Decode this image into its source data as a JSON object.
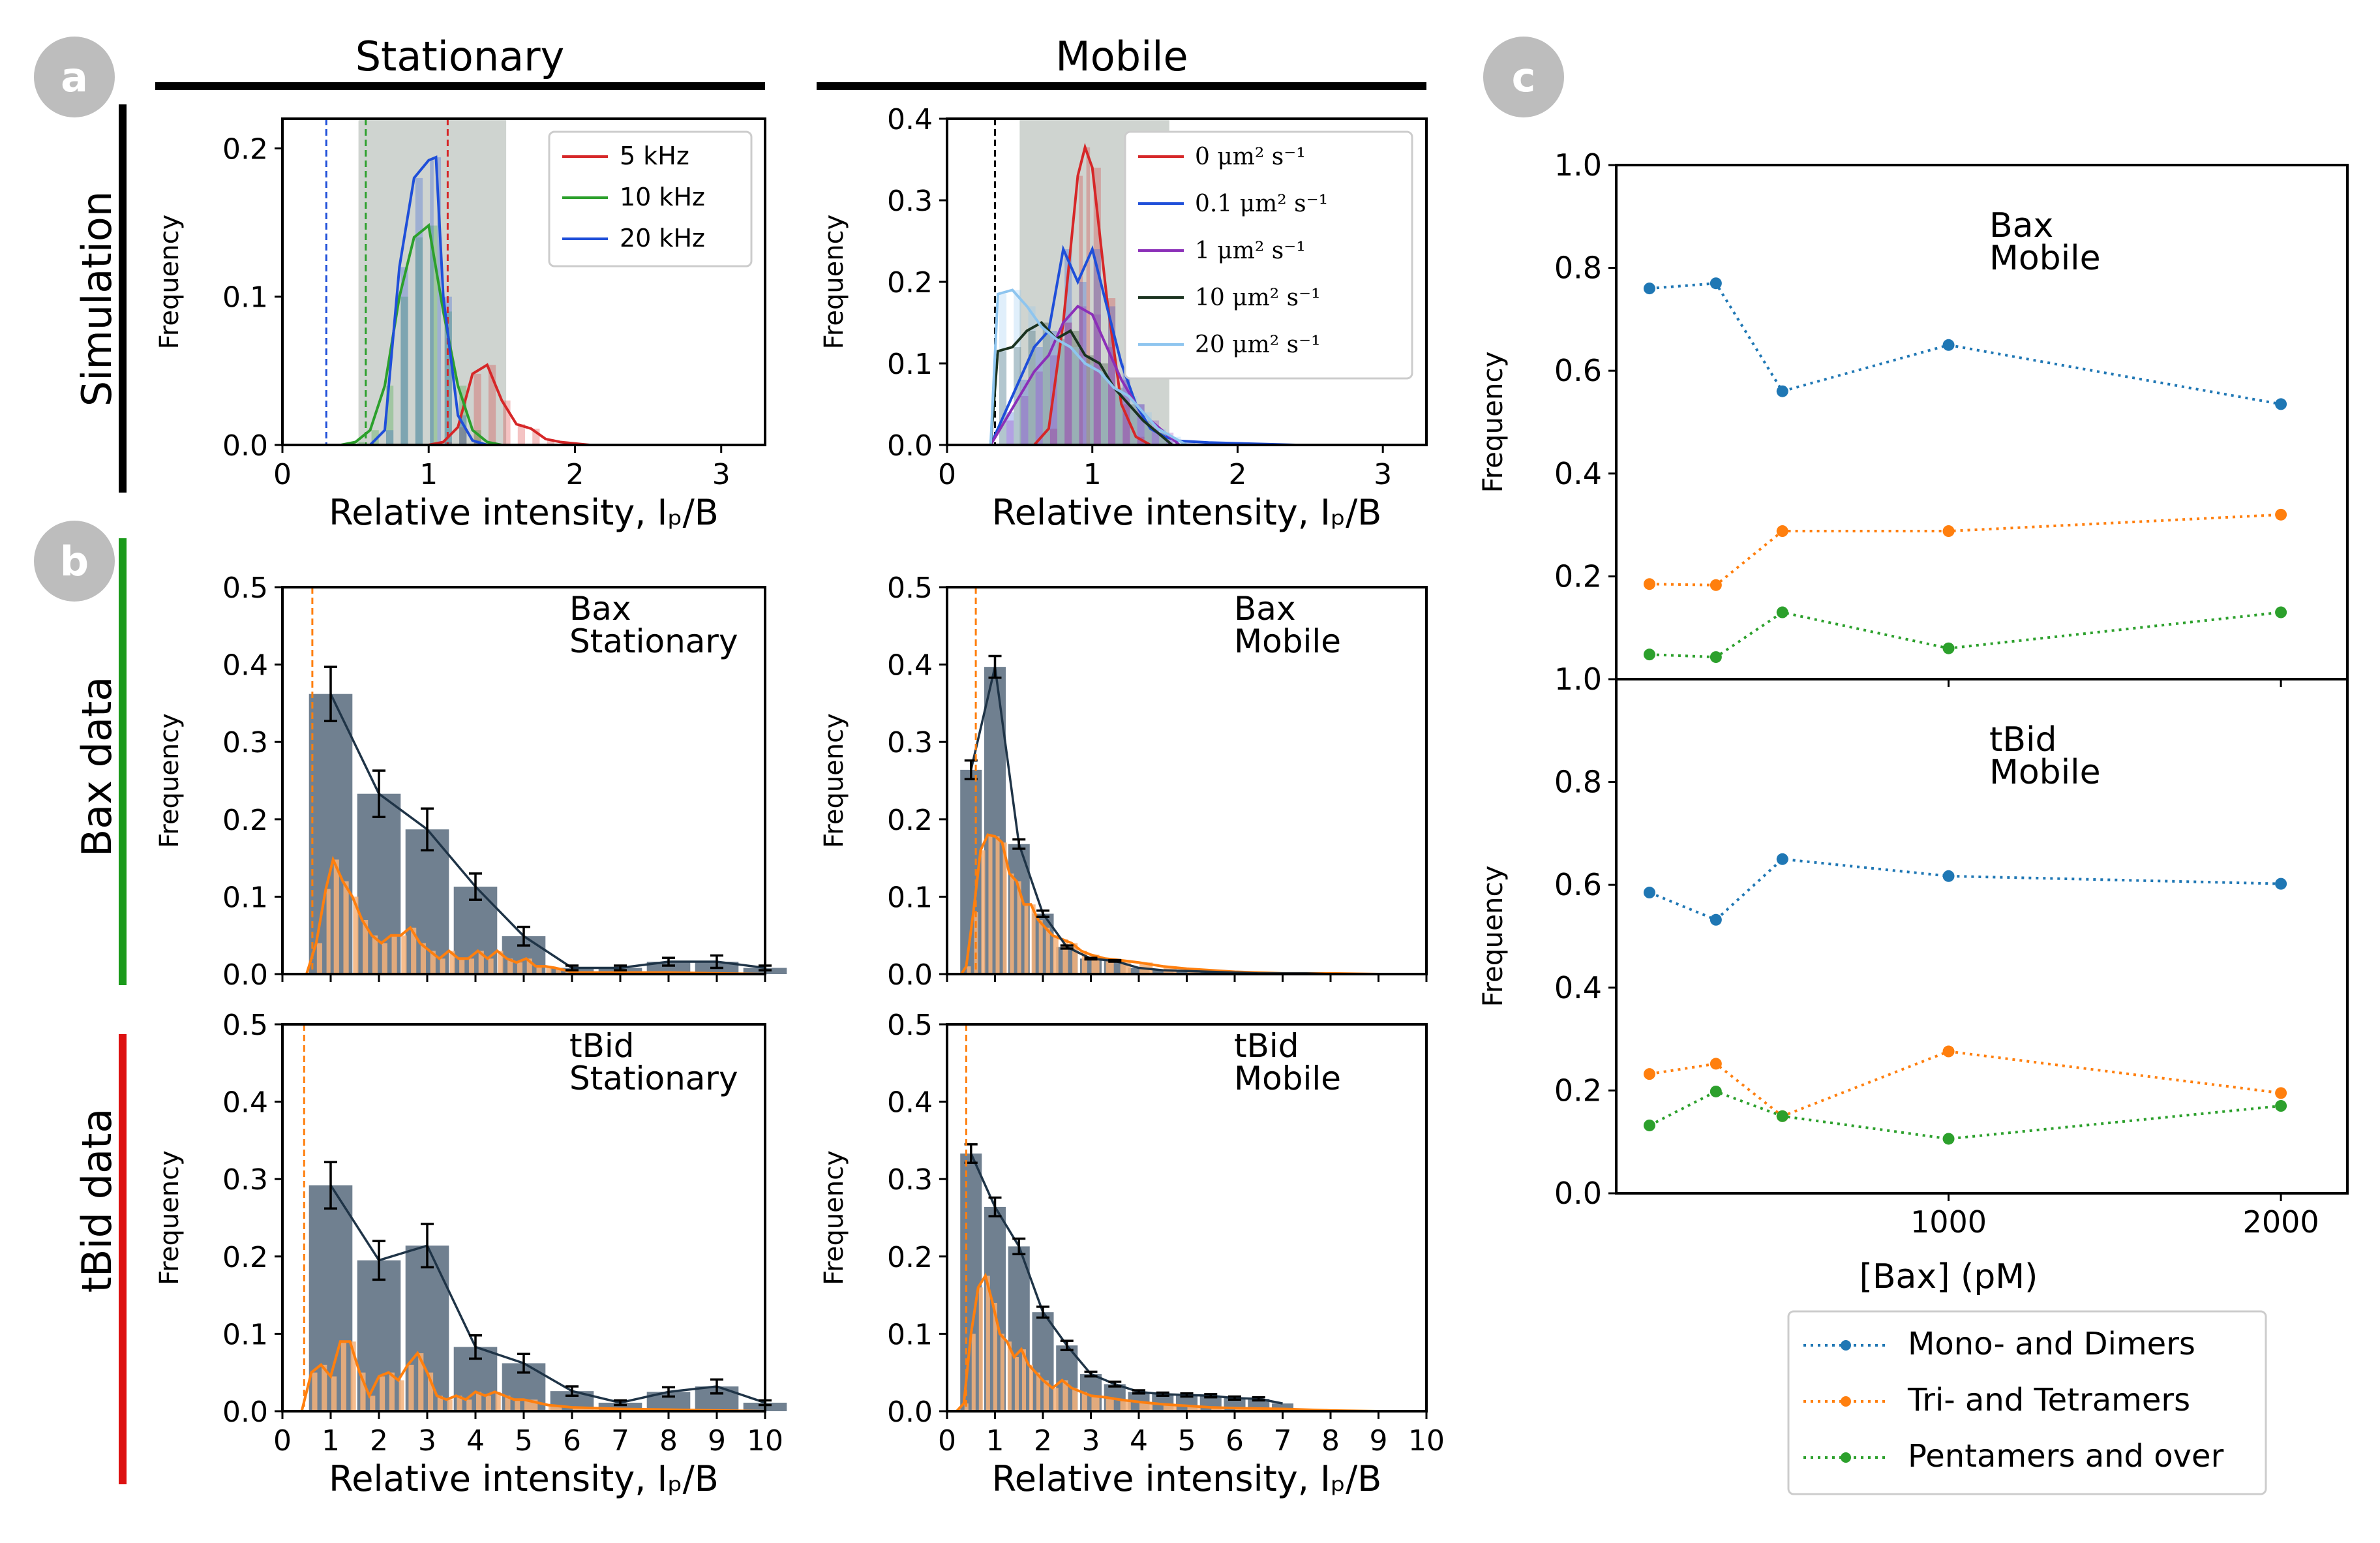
{
  "figure": {
    "panel_labels": [
      "a",
      "b",
      "c"
    ],
    "column_titles": {
      "stationary": "Stationary",
      "mobile": "Mobile"
    },
    "row_titles": {
      "simulation": "Simulation",
      "bax": "Bax data",
      "tbid": "tBid data"
    },
    "row_bar_colors": {
      "simulation": "#000000",
      "bax": "#1a9a1a",
      "tbid": "#dd1111"
    },
    "panel_label_bg": "#bdbdbd",
    "bar_color": "#708090",
    "line_color": "#1f3447",
    "orange": "#ff7f0e",
    "shade_color": "#cfd4d0"
  },
  "chart_data": [
    {
      "id": "sim_stationary",
      "type": "line",
      "ylabel": "Frequency",
      "xlabel": "Relative intensity, Iₚ/B",
      "xlim": [
        0,
        3.3
      ],
      "ylim": [
        0,
        0.22
      ],
      "xticks": [
        0,
        1,
        2,
        3
      ],
      "yticks": [
        0.0,
        0.1,
        0.2
      ],
      "ytick_labels": [
        "0.0",
        "0.1",
        "0.2"
      ],
      "shade": [
        0.52,
        1.53
      ],
      "vlines": [
        {
          "x": 0.3,
          "color": "#1f4fd9"
        },
        {
          "x": 0.57,
          "color": "#2ca02c"
        },
        {
          "x": 1.13,
          "color": "#d62728"
        }
      ],
      "series": [
        {
          "name": "5 kHz",
          "color": "#d62728",
          "x": [
            0.4,
            0.5,
            0.6,
            0.7,
            0.8,
            0.9,
            1.0,
            1.1,
            1.2,
            1.3,
            1.4,
            1.5,
            1.6,
            1.7,
            1.8,
            1.9,
            2.0,
            2.1,
            2.2
          ],
          "y": [
            0,
            0,
            0,
            0,
            0,
            0,
            0,
            0.002,
            0.012,
            0.048,
            0.054,
            0.03,
            0.014,
            0.011,
            0.004,
            0.002,
            0.001,
            0,
            0
          ]
        },
        {
          "name": "10 kHz",
          "color": "#2ca02c",
          "x": [
            0.4,
            0.5,
            0.6,
            0.7,
            0.8,
            0.9,
            1.0,
            1.1,
            1.2,
            1.3,
            1.4,
            1.5
          ],
          "y": [
            0,
            0.002,
            0.01,
            0.04,
            0.1,
            0.14,
            0.148,
            0.09,
            0.04,
            0.01,
            0.002,
            0
          ]
        },
        {
          "name": "20 kHz",
          "color": "#1f4fd9",
          "x": [
            0.6,
            0.7,
            0.8,
            0.9,
            1.0,
            1.05,
            1.1,
            1.2,
            1.3,
            1.4
          ],
          "y": [
            0,
            0.01,
            0.12,
            0.18,
            0.192,
            0.194,
            0.1,
            0.02,
            0.003,
            0
          ]
        }
      ]
    },
    {
      "id": "sim_mobile",
      "type": "line",
      "ylabel": "Frequency",
      "xlabel": "Relative intensity, Iₚ/B",
      "xlim": [
        0,
        3.3
      ],
      "ylim": [
        0,
        0.4
      ],
      "xticks": [
        0,
        1,
        2,
        3
      ],
      "yticks": [
        0.0,
        0.1,
        0.2,
        0.3,
        0.4
      ],
      "ytick_labels": [
        "0.0",
        "0.1",
        "0.2",
        "0.3",
        "0.4"
      ],
      "shade": [
        0.5,
        1.53
      ],
      "vlines": [
        {
          "x": 0.33,
          "color": "#000000"
        }
      ],
      "series": [
        {
          "name": "0 μm² s⁻¹",
          "color": "#d62728",
          "x": [
            0.6,
            0.7,
            0.8,
            0.9,
            0.95,
            1.0,
            1.1,
            1.2,
            1.3,
            1.4
          ],
          "y": [
            0,
            0.02,
            0.15,
            0.33,
            0.365,
            0.34,
            0.18,
            0.05,
            0.01,
            0
          ]
        },
        {
          "name": "0.1 μm² s⁻¹",
          "color": "#1f4fd9",
          "x": [
            0.3,
            0.4,
            0.5,
            0.6,
            0.7,
            0.8,
            0.9,
            1.0,
            1.1,
            1.2,
            1.3,
            1.4,
            1.5,
            1.6,
            1.8,
            2.0,
            2.2,
            2.4
          ],
          "y": [
            0,
            0.04,
            0.08,
            0.12,
            0.14,
            0.24,
            0.2,
            0.24,
            0.17,
            0.1,
            0.05,
            0.02,
            0.01,
            0.005,
            0.003,
            0.002,
            0.001,
            0
          ]
        },
        {
          "name": "1 μm² s⁻¹",
          "color": "#8b2fb8",
          "x": [
            0.3,
            0.4,
            0.5,
            0.6,
            0.7,
            0.8,
            0.9,
            1.0,
            1.1,
            1.2,
            1.3,
            1.4,
            1.5,
            1.6
          ],
          "y": [
            0,
            0.03,
            0.06,
            0.09,
            0.11,
            0.15,
            0.17,
            0.16,
            0.12,
            0.08,
            0.05,
            0.03,
            0.015,
            0
          ]
        },
        {
          "name": "10 μm² s⁻¹",
          "color": "#1b3320",
          "x": [
            0.3,
            0.35,
            0.45,
            0.55,
            0.65,
            0.75,
            0.85,
            0.95,
            1.05,
            1.15,
            1.25,
            1.35,
            1.45,
            1.55
          ],
          "y": [
            0,
            0.115,
            0.12,
            0.14,
            0.15,
            0.13,
            0.14,
            0.11,
            0.1,
            0.07,
            0.05,
            0.03,
            0.015,
            0
          ]
        },
        {
          "name": "20 μm² s⁻¹",
          "color": "#8ec5ef",
          "x": [
            0.3,
            0.35,
            0.45,
            0.55,
            0.65,
            0.75,
            0.85,
            0.95,
            1.05,
            1.15,
            1.25,
            1.35,
            1.45,
            1.55,
            1.65
          ],
          "y": [
            0,
            0.185,
            0.19,
            0.17,
            0.145,
            0.13,
            0.12,
            0.1,
            0.09,
            0.07,
            0.06,
            0.04,
            0.02,
            0.01,
            0
          ]
        }
      ]
    },
    {
      "id": "bax_stationary",
      "type": "bar",
      "annotation": [
        "Bax",
        "Stationary"
      ],
      "ylabel": "Frequency",
      "xlabel": "",
      "xlim": [
        0,
        10
      ],
      "ylim": [
        0,
        0.5
      ],
      "xticks": [
        0,
        1,
        2,
        3,
        4,
        5,
        6,
        7,
        8,
        9,
        10
      ],
      "show_xtick_labels": false,
      "yticks": [
        0.0,
        0.1,
        0.2,
        0.3,
        0.4,
        0.5
      ],
      "ytick_labels": [
        "0.0",
        "0.1",
        "0.2",
        "0.3",
        "0.4",
        "0.5"
      ],
      "vline": 0.62,
      "bar_centers": [
        1,
        2,
        3,
        4,
        5,
        6,
        7,
        8,
        9,
        10
      ],
      "values": [
        0.362,
        0.233,
        0.187,
        0.113,
        0.049,
        0.008,
        0.008,
        0.016,
        0.016,
        0.008
      ],
      "errors": [
        0.035,
        0.03,
        0.027,
        0.017,
        0.012,
        0.003,
        0.003,
        0.005,
        0.008,
        0.003
      ],
      "orange_x": [
        0.5,
        0.7,
        0.9,
        1.05,
        1.25,
        1.45,
        1.65,
        1.85,
        2.05,
        2.25,
        2.45,
        2.65,
        2.85,
        3.05,
        3.25,
        3.45,
        3.65,
        3.85,
        4.05,
        4.25,
        4.45,
        4.65,
        4.85,
        5.05,
        5.25,
        5.45,
        5.65,
        5.85,
        6.05,
        7.0,
        8.0,
        9.0,
        10.0
      ],
      "orange_y": [
        0,
        0.04,
        0.11,
        0.148,
        0.12,
        0.1,
        0.07,
        0.05,
        0.04,
        0.05,
        0.05,
        0.06,
        0.04,
        0.03,
        0.02,
        0.03,
        0.02,
        0.02,
        0.03,
        0.02,
        0.03,
        0.02,
        0.015,
        0.02,
        0.01,
        0.01,
        0.008,
        0.005,
        0.002,
        0.002,
        0.002,
        0.001,
        0
      ]
    },
    {
      "id": "bax_mobile",
      "type": "bar",
      "annotation": [
        "Bax",
        "Mobile"
      ],
      "ylabel": "Frequency",
      "xlabel": "",
      "xlim": [
        0,
        10
      ],
      "ylim": [
        0,
        0.5
      ],
      "xticks": [
        0,
        1,
        2,
        3,
        4,
        5,
        6,
        7,
        8,
        9,
        10
      ],
      "show_xtick_labels": false,
      "yticks": [
        0.0,
        0.1,
        0.2,
        0.3,
        0.4,
        0.5
      ],
      "ytick_labels": [
        "0.0",
        "0.1",
        "0.2",
        "0.3",
        "0.4",
        "0.5"
      ],
      "vline": 0.6,
      "bar_centers": [
        0.5,
        1.0,
        1.5,
        2.0,
        2.5,
        3.0,
        3.5,
        4.0,
        4.5,
        5.0,
        5.5,
        6.0,
        6.5,
        7.0,
        7.5,
        8.0,
        8.5
      ],
      "values": [
        0.264,
        0.397,
        0.168,
        0.078,
        0.035,
        0.02,
        0.017,
        0.008,
        0.005,
        0.004,
        0.003,
        0.002,
        0.001,
        0.001,
        0.001,
        0,
        0
      ],
      "errors": [
        0.012,
        0.014,
        0.006,
        0.004,
        0.002,
        0.001,
        0.001,
        0,
        0,
        0,
        0,
        0,
        0,
        0,
        0,
        0,
        0
      ],
      "orange_x": [
        0.3,
        0.4,
        0.55,
        0.7,
        0.85,
        1.0,
        1.15,
        1.3,
        1.45,
        1.6,
        1.75,
        1.9,
        2.05,
        2.2,
        2.4,
        2.6,
        2.8,
        3.0,
        3.3,
        3.6,
        4.0,
        4.5,
        5.0,
        5.5,
        6.0,
        7.0,
        8.0,
        9.0,
        10.0
      ],
      "orange_y": [
        0,
        0.01,
        0.08,
        0.16,
        0.18,
        0.178,
        0.17,
        0.13,
        0.12,
        0.09,
        0.09,
        0.07,
        0.06,
        0.05,
        0.045,
        0.04,
        0.03,
        0.025,
        0.02,
        0.018,
        0.015,
        0.01,
        0.007,
        0.005,
        0.003,
        0.001,
        0.001,
        0,
        0
      ]
    },
    {
      "id": "tbid_stationary",
      "type": "bar",
      "annotation": [
        "tBid",
        "Stationary"
      ],
      "ylabel": "Frequency",
      "xlabel": "Relative intensity, Iₚ/B",
      "xlim": [
        0,
        10
      ],
      "ylim": [
        0,
        0.5
      ],
      "xticks": [
        0,
        1,
        2,
        3,
        4,
        5,
        6,
        7,
        8,
        9,
        10
      ],
      "show_xtick_labels": true,
      "yticks": [
        0.0,
        0.1,
        0.2,
        0.3,
        0.4,
        0.5
      ],
      "ytick_labels": [
        "0.0",
        "0.1",
        "0.2",
        "0.3",
        "0.4",
        "0.5"
      ],
      "vline": 0.45,
      "bar_centers": [
        1,
        2,
        3,
        4,
        5,
        6,
        7,
        8,
        9,
        10
      ],
      "values": [
        0.292,
        0.195,
        0.214,
        0.083,
        0.062,
        0.026,
        0.011,
        0.025,
        0.032,
        0.011
      ],
      "errors": [
        0.03,
        0.025,
        0.028,
        0.015,
        0.012,
        0.006,
        0.003,
        0.006,
        0.009,
        0.003
      ],
      "orange_x": [
        0.4,
        0.6,
        0.8,
        1.0,
        1.2,
        1.4,
        1.6,
        1.8,
        2.0,
        2.2,
        2.4,
        2.6,
        2.8,
        3.0,
        3.2,
        3.4,
        3.6,
        3.8,
        4.0,
        4.2,
        4.4,
        4.6,
        4.8,
        5.0,
        5.5,
        6.0,
        7.0,
        8.0,
        9.0,
        10.0
      ],
      "orange_y": [
        0,
        0.05,
        0.06,
        0.045,
        0.09,
        0.09,
        0.05,
        0.02,
        0.045,
        0.05,
        0.04,
        0.06,
        0.075,
        0.05,
        0.02,
        0.015,
        0.02,
        0.015,
        0.025,
        0.02,
        0.025,
        0.02,
        0.015,
        0.015,
        0.008,
        0.005,
        0.003,
        0.002,
        0.001,
        0
      ]
    },
    {
      "id": "tbid_mobile",
      "type": "bar",
      "annotation": [
        "tBid",
        "Mobile"
      ],
      "ylabel": "Frequency",
      "xlabel": "Relative intensity, Iₚ/B",
      "xlim": [
        0,
        10
      ],
      "ylim": [
        0,
        0.5
      ],
      "xticks": [
        0,
        1,
        2,
        3,
        4,
        5,
        6,
        7,
        8,
        9,
        10
      ],
      "show_xtick_labels": true,
      "yticks": [
        0.0,
        0.1,
        0.2,
        0.3,
        0.4,
        0.5
      ],
      "ytick_labels": [
        "0.0",
        "0.1",
        "0.2",
        "0.3",
        "0.4",
        "0.5"
      ],
      "vline": 0.4,
      "bar_centers": [
        0.5,
        1.0,
        1.5,
        2.0,
        2.5,
        3.0,
        3.5,
        4.0,
        4.5,
        5.0,
        5.5,
        6.0,
        6.5,
        7.0
      ],
      "values": [
        0.333,
        0.264,
        0.213,
        0.128,
        0.085,
        0.048,
        0.035,
        0.025,
        0.022,
        0.021,
        0.02,
        0.017,
        0.016,
        0.01
      ],
      "errors": [
        0.012,
        0.012,
        0.01,
        0.007,
        0.006,
        0.003,
        0.003,
        0.002,
        0.002,
        0.002,
        0.002,
        0.002,
        0.002,
        0
      ],
      "orange_x": [
        0.2,
        0.35,
        0.5,
        0.65,
        0.8,
        0.95,
        1.1,
        1.25,
        1.4,
        1.55,
        1.7,
        1.85,
        2.0,
        2.2,
        2.4,
        2.6,
        2.8,
        3.0,
        3.3,
        3.6,
        4.0,
        4.5,
        5.0,
        5.5,
        6.0,
        7.0,
        8.0,
        9.0,
        10.0
      ],
      "orange_y": [
        0,
        0.01,
        0.1,
        0.16,
        0.175,
        0.14,
        0.1,
        0.09,
        0.07,
        0.08,
        0.06,
        0.05,
        0.04,
        0.03,
        0.04,
        0.03,
        0.025,
        0.02,
        0.018,
        0.015,
        0.012,
        0.009,
        0.007,
        0.005,
        0.004,
        0.003,
        0.001,
        0,
        0
      ]
    },
    {
      "id": "c_top",
      "type": "line",
      "annotation": [
        "Bax",
        "Mobile"
      ],
      "ylabel": "Frequency",
      "xlabel": "",
      "xlim": [
        0,
        2200
      ],
      "ylim": [
        0,
        1.0
      ],
      "xticks": [
        1000,
        2000
      ],
      "show_xtick_labels": false,
      "yticks": [
        0.2,
        0.4,
        0.6,
        0.8,
        1.0
      ],
      "ytick_labels": [
        "0.2",
        "0.4",
        "0.6",
        "0.8",
        "1.0"
      ],
      "series": [
        {
          "name": "Mono- and Dimers",
          "color": "#1f77b4",
          "x": [
            100,
            300,
            500,
            1000,
            2000
          ],
          "y": [
            0.76,
            0.77,
            0.56,
            0.65,
            0.535
          ]
        },
        {
          "name": "Tri- and Tetramers",
          "color": "#ff7f0e",
          "x": [
            100,
            300,
            500,
            1000,
            2000
          ],
          "y": [
            0.185,
            0.183,
            0.288,
            0.288,
            0.32
          ]
        },
        {
          "name": "Pentamers and over",
          "color": "#2ca02c",
          "x": [
            100,
            300,
            500,
            1000,
            2000
          ],
          "y": [
            0.048,
            0.043,
            0.13,
            0.06,
            0.13
          ]
        }
      ]
    },
    {
      "id": "c_bottom",
      "type": "line",
      "annotation": [
        "tBid",
        "Mobile"
      ],
      "ylabel": "Frequency",
      "xlabel": "[Bax] (pM)",
      "xlim": [
        0,
        2200
      ],
      "ylim": [
        0,
        1.0
      ],
      "xticks": [
        1000,
        2000
      ],
      "xtick_labels": [
        "1000",
        "2000"
      ],
      "show_xtick_labels": true,
      "yticks": [
        0.0,
        0.2,
        0.4,
        0.6,
        0.8,
        1.0
      ],
      "ytick_labels": [
        "0.0",
        "0.2",
        "0.4",
        "0.6",
        "0.8",
        "1.0"
      ],
      "series": [
        {
          "name": "Mono- and Dimers",
          "color": "#1f77b4",
          "x": [
            100,
            300,
            500,
            1000,
            2000
          ],
          "y": [
            0.585,
            0.532,
            0.65,
            0.617,
            0.602
          ]
        },
        {
          "name": "Tri- and Tetramers",
          "color": "#ff7f0e",
          "x": [
            100,
            300,
            500,
            1000,
            2000
          ],
          "y": [
            0.232,
            0.252,
            0.15,
            0.276,
            0.195
          ]
        },
        {
          "name": "Pentamers and over",
          "color": "#2ca02c",
          "x": [
            100,
            300,
            500,
            1000,
            2000
          ],
          "y": [
            0.132,
            0.198,
            0.15,
            0.106,
            0.17
          ]
        }
      ]
    }
  ]
}
